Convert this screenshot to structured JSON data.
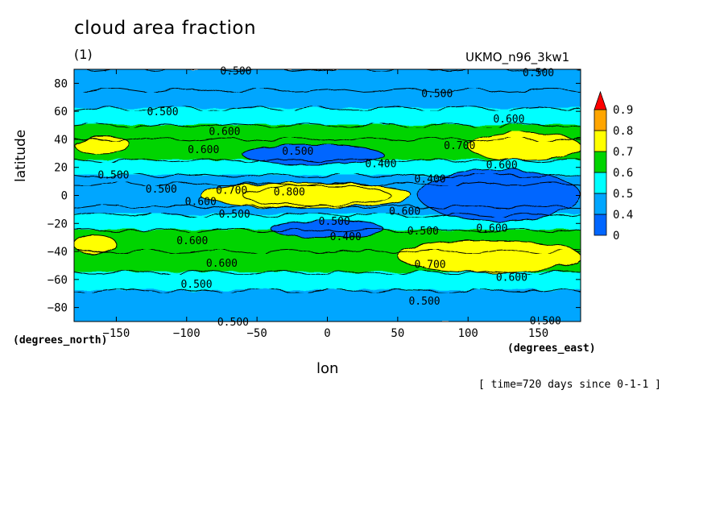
{
  "title": "cloud area fraction",
  "panel_label": "(1)",
  "source": "UKMO_n96_3kw1",
  "time_note": "[ time=720 days since 0-1-1 ]",
  "colors": {
    "lt_0_4": "#0066ff",
    "0_4_to_0_5": "#00a6ff",
    "0_5_to_0_6": "#00ffff",
    "0_6_to_0_7": "#00d400",
    "0_7_to_0_8": "#ffff00",
    "0_8_to_0_9": "#ffa500",
    "gt_0_9": "#ff0000"
  },
  "chart_data": {
    "type": "heatmap",
    "title": "cloud area fraction",
    "xlabel": "lon",
    "ylabel": "latitude",
    "x_units": "(degrees_east)",
    "y_units": "(degrees_north)",
    "xlim": [
      -180,
      180
    ],
    "ylim": [
      -90,
      90
    ],
    "x_ticks": [
      -150,
      -100,
      -50,
      0,
      50,
      100,
      150
    ],
    "y_ticks": [
      80,
      60,
      40,
      20,
      0,
      -20,
      -40,
      -60,
      -80
    ],
    "colorbar": {
      "levels": [
        0,
        0.4,
        0.5,
        0.6,
        0.7,
        0.8,
        0.9
      ],
      "labels": [
        "0",
        "0.4",
        "0.5",
        "0.6",
        "0.7",
        "0.8",
        "0.9"
      ],
      "extend": "max"
    },
    "lat_bands": [
      {
        "lat": [
          75,
          90
        ],
        "value": 0.45
      },
      {
        "lat": [
          62,
          75
        ],
        "value": 0.45
      },
      {
        "lat": [
          50,
          62
        ],
        "value": 0.55
      },
      {
        "lat": [
          40,
          50
        ],
        "value": 0.65
      },
      {
        "lat": [
          25,
          40
        ],
        "value": 0.65
      },
      {
        "lat": [
          14,
          25
        ],
        "value": 0.55
      },
      {
        "lat": [
          8,
          14
        ],
        "value": 0.45
      },
      {
        "lat": [
          -8,
          8
        ],
        "value": 0.45
      },
      {
        "lat": [
          -14,
          -8
        ],
        "value": 0.45
      },
      {
        "lat": [
          -25,
          -14
        ],
        "value": 0.55
      },
      {
        "lat": [
          -40,
          -25
        ],
        "value": 0.65
      },
      {
        "lat": [
          -55,
          -40
        ],
        "value": 0.65
      },
      {
        "lat": [
          -68,
          -55
        ],
        "value": 0.55
      },
      {
        "lat": [
          -90,
          -68
        ],
        "value": 0.45
      }
    ],
    "features": [
      {
        "name": "equatorial maximum",
        "lon": [
          -60,
          45
        ],
        "lat": [
          -7,
          7
        ],
        "value": 0.85
      },
      {
        "name": "equatorial ribbon",
        "lon": [
          -90,
          60
        ],
        "lat": [
          -9,
          9
        ],
        "value": 0.75
      },
      {
        "name": "east pacific stratocumulus minimum",
        "lon": [
          65,
          180
        ],
        "lat": [
          -18,
          18
        ],
        "value": 0.35
      },
      {
        "name": "northern subtropical minimum",
        "lon": [
          -60,
          40
        ],
        "lat": [
          22,
          36
        ],
        "value": 0.35
      },
      {
        "name": "southern subtropical minimum",
        "lon": [
          -40,
          40
        ],
        "lat": [
          -30,
          -18
        ],
        "value": 0.35
      },
      {
        "name": "north atlantic storm track",
        "lon": [
          100,
          180
        ],
        "lat": [
          25,
          45
        ],
        "value": 0.75
      },
      {
        "name": "north east storm track",
        "lon": [
          -180,
          -140
        ],
        "lat": [
          30,
          42
        ],
        "value": 0.75
      },
      {
        "name": "south west storm track",
        "lon": [
          -180,
          -150
        ],
        "lat": [
          -42,
          -28
        ],
        "value": 0.75
      },
      {
        "name": "southern storm track",
        "lon": [
          50,
          180
        ],
        "lat": [
          -55,
          -32
        ],
        "value": 0.75
      }
    ],
    "contour_labels": [
      {
        "text": "0.500",
        "lon": -65,
        "lat": 89
      },
      {
        "text": "0.500",
        "lon": 150,
        "lat": 88
      },
      {
        "text": "0.500",
        "lon": 78,
        "lat": 73
      },
      {
        "text": "0.500",
        "lon": -117,
        "lat": 60
      },
      {
        "text": "0.600",
        "lon": 129,
        "lat": 55
      },
      {
        "text": "0.600",
        "lon": -73,
        "lat": 46
      },
      {
        "text": "0.600",
        "lon": -88,
        "lat": 33
      },
      {
        "text": "0.700",
        "lon": 94,
        "lat": 36
      },
      {
        "text": "0.500",
        "lon": -21,
        "lat": 32
      },
      {
        "text": "0.400",
        "lon": 38,
        "lat": 23
      },
      {
        "text": "0.600",
        "lon": 124,
        "lat": 22
      },
      {
        "text": "0.500",
        "lon": -152,
        "lat": 15
      },
      {
        "text": "0.400",
        "lon": 73,
        "lat": 12
      },
      {
        "text": "0.500",
        "lon": -118,
        "lat": 5
      },
      {
        "text": "0.700",
        "lon": -68,
        "lat": 4
      },
      {
        "text": "0.800",
        "lon": -27,
        "lat": 3
      },
      {
        "text": "0.600",
        "lon": -90,
        "lat": -4
      },
      {
        "text": "0.600",
        "lon": 55,
        "lat": -11
      },
      {
        "text": "0.500",
        "lon": -66,
        "lat": -13
      },
      {
        "text": "0.500",
        "lon": 5,
        "lat": -18
      },
      {
        "text": "0.600",
        "lon": 117,
        "lat": -23
      },
      {
        "text": "0.500",
        "lon": 68,
        "lat": -25
      },
      {
        "text": "0.400",
        "lon": 13,
        "lat": -29
      },
      {
        "text": "0.600",
        "lon": -96,
        "lat": -32
      },
      {
        "text": "0.600",
        "lon": -75,
        "lat": -48
      },
      {
        "text": "0.700",
        "lon": 73,
        "lat": -49
      },
      {
        "text": "0.600",
        "lon": 131,
        "lat": -58
      },
      {
        "text": "0.500",
        "lon": -93,
        "lat": -63
      },
      {
        "text": "0.500",
        "lon": 69,
        "lat": -75
      },
      {
        "text": "0.500",
        "lon": -67,
        "lat": -90
      },
      {
        "text": "0.500",
        "lon": 155,
        "lat": -89
      }
    ]
  }
}
